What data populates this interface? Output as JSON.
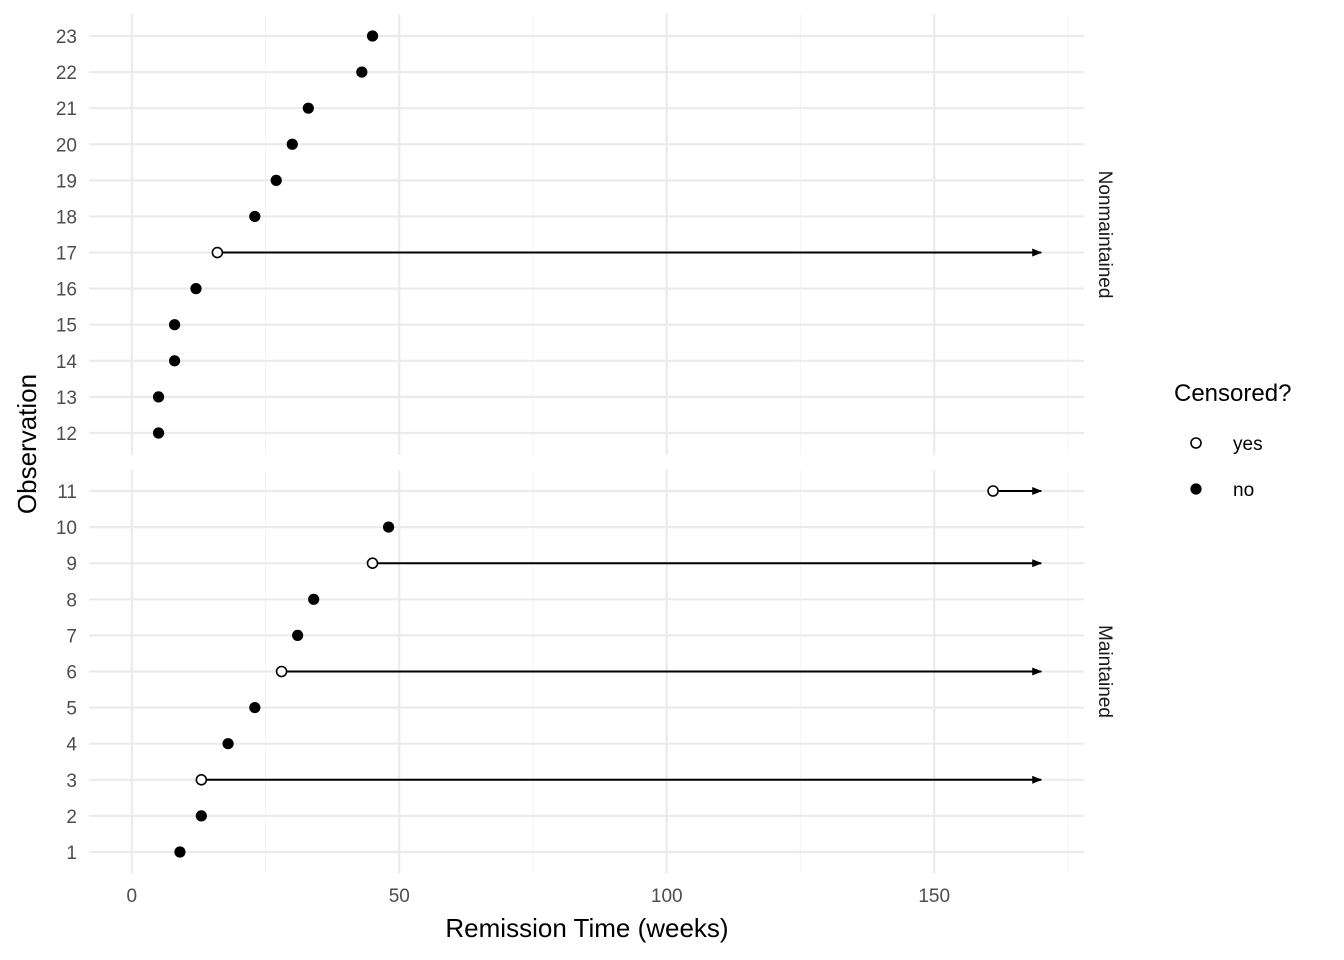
{
  "chart_data": {
    "type": "scatter",
    "xlabel": "Remission Time (weeks)",
    "ylabel": "Observation",
    "xlim": [
      -8,
      178
    ],
    "x_ticks": [
      0,
      50,
      100,
      150
    ],
    "x_tick_labels": [
      "0",
      "50",
      "100",
      "150"
    ],
    "censor_arrow_end": 170,
    "grid": true,
    "legend": {
      "title": "Censored?",
      "placement": "right",
      "entries": [
        {
          "label": "yes",
          "marker": "open-circle"
        },
        {
          "label": "no",
          "marker": "filled-circle"
        }
      ]
    },
    "facets": [
      {
        "label": "Nonmaintained",
        "observations": [
          12,
          13,
          14,
          15,
          16,
          17,
          18,
          19,
          20,
          21,
          22,
          23
        ],
        "points": [
          {
            "obs": 12,
            "time": 5,
            "censored": false
          },
          {
            "obs": 13,
            "time": 5,
            "censored": false
          },
          {
            "obs": 14,
            "time": 8,
            "censored": false
          },
          {
            "obs": 15,
            "time": 8,
            "censored": false
          },
          {
            "obs": 16,
            "time": 12,
            "censored": false
          },
          {
            "obs": 17,
            "time": 16,
            "censored": true
          },
          {
            "obs": 18,
            "time": 23,
            "censored": false
          },
          {
            "obs": 19,
            "time": 27,
            "censored": false
          },
          {
            "obs": 20,
            "time": 30,
            "censored": false
          },
          {
            "obs": 21,
            "time": 33,
            "censored": false
          },
          {
            "obs": 22,
            "time": 43,
            "censored": false
          },
          {
            "obs": 23,
            "time": 45,
            "censored": false
          }
        ]
      },
      {
        "label": "Maintained",
        "observations": [
          1,
          2,
          3,
          4,
          5,
          6,
          7,
          8,
          9,
          10,
          11
        ],
        "points": [
          {
            "obs": 1,
            "time": 9,
            "censored": false
          },
          {
            "obs": 2,
            "time": 13,
            "censored": false
          },
          {
            "obs": 3,
            "time": 13,
            "censored": true
          },
          {
            "obs": 4,
            "time": 18,
            "censored": false
          },
          {
            "obs": 5,
            "time": 23,
            "censored": false
          },
          {
            "obs": 6,
            "time": 28,
            "censored": true
          },
          {
            "obs": 7,
            "time": 31,
            "censored": false
          },
          {
            "obs": 8,
            "time": 34,
            "censored": false
          },
          {
            "obs": 9,
            "time": 45,
            "censored": true
          },
          {
            "obs": 10,
            "time": 48,
            "censored": false
          },
          {
            "obs": 11,
            "time": 161,
            "censored": true
          }
        ]
      }
    ],
    "colors": {
      "background": "#ffffff",
      "grid_major": "#ebebeb",
      "grid_minor": "#f5f5f5",
      "point": "#000000"
    }
  }
}
